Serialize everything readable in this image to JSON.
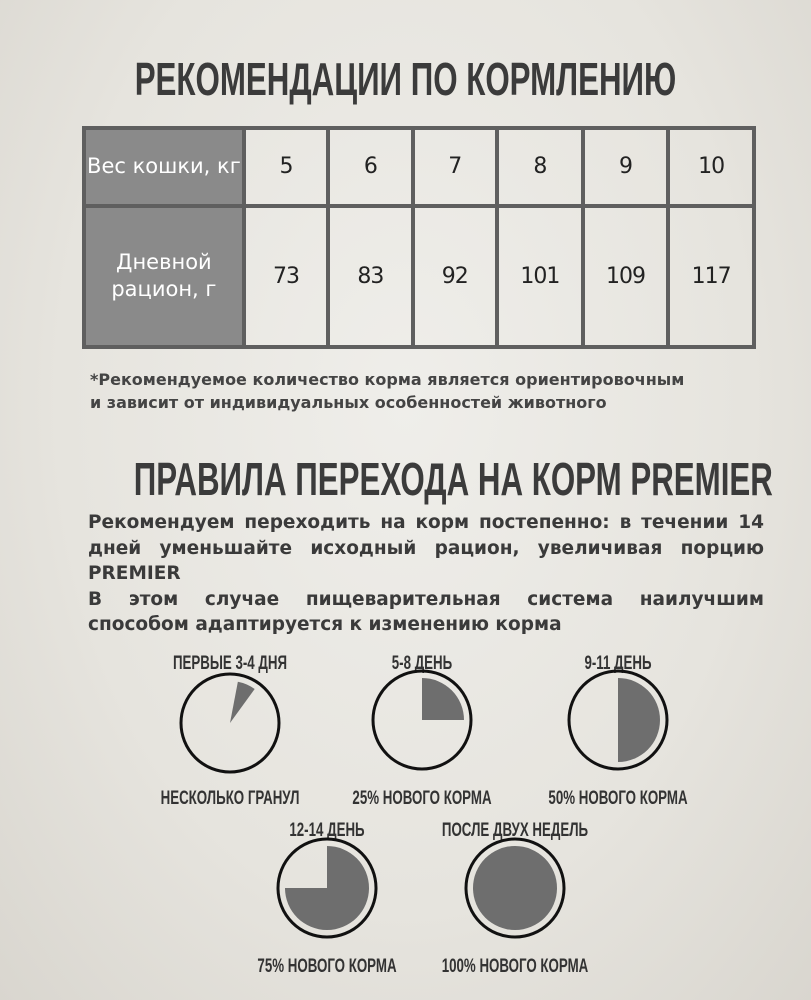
{
  "feeding": {
    "title": "РЕКОМЕНДАЦИИ ПО КОРМЛЕНИЮ",
    "row_headers": [
      "Вес кошки, кг",
      "Дневной рацион, г"
    ],
    "weights": [
      "5",
      "6",
      "7",
      "8",
      "9",
      "10"
    ],
    "daily": [
      "73",
      "83",
      "92",
      "101",
      "109",
      "117"
    ],
    "note_line1": "*Рекомендуемое количество корма является ориентировочным",
    "note_line2": "и зависит от индивидуальных особенностей животного"
  },
  "transition": {
    "title": "ПРАВИЛА ПЕРЕХОДА  НА КОРМ PREMIER",
    "paragraph1": "Рекомендуем переходить на корм постепенно: в течении 14 дней уменьшайте исходный рацион, увеличивая порцию PREMIER",
    "paragraph2": "В этом случае пищеварительная система наилучшим способом адаптируется к изменению корма",
    "stages": [
      {
        "period": "ПЕРВЫЕ 3-4 ДНЯ",
        "caption": "НЕСКОЛЬКО ГРАНУЛ",
        "new_food_fraction": 0.07
      },
      {
        "period": "5-8 ДЕНЬ",
        "caption": "25% НОВОГО КОРМА",
        "new_food_fraction": 0.25
      },
      {
        "period": "9-11 ДЕНЬ",
        "caption": "50% НОВОГО КОРМА",
        "new_food_fraction": 0.5
      },
      {
        "period": "12-14 ДЕНЬ",
        "caption": "75% НОВОГО КОРМА",
        "new_food_fraction": 0.75
      },
      {
        "period": "ПОСЛЕ ДВУХ НЕДЕЛЬ",
        "caption": "100% НОВОГО КОРМА",
        "new_food_fraction": 1.0
      }
    ]
  },
  "colors": {
    "header_fill": "#8a8a8a",
    "pie_fill": "#6e6e6e",
    "grid": "#5f5f5f"
  }
}
